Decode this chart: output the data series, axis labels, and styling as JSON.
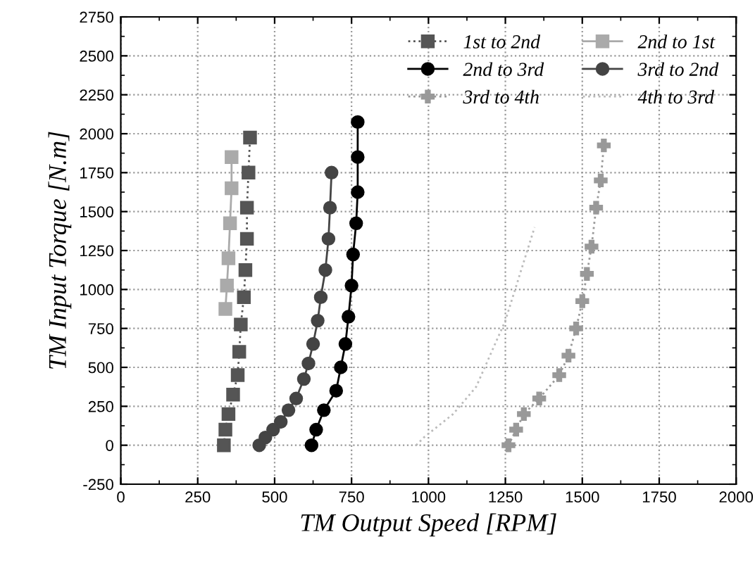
{
  "chart_data": {
    "type": "line",
    "xlabel": "TM Output Speed [RPM]",
    "ylabel": "TM Input Torque [N.m]",
    "xlim": [
      0,
      2000
    ],
    "xticks": [
      0,
      250,
      500,
      750,
      1000,
      1250,
      1500,
      1750,
      2000
    ],
    "ylim": [
      -250,
      2750
    ],
    "yticks": [
      -250,
      0,
      250,
      500,
      750,
      1000,
      1250,
      1500,
      1750,
      2000,
      2250,
      2500,
      2750
    ],
    "grid": true,
    "legend": "top right",
    "series": [
      {
        "name": "1st to 2nd",
        "color": "#555555",
        "marker": "square",
        "line_style": "dotted",
        "x": [
          335,
          340,
          350,
          365,
          380,
          385,
          390,
          400,
          405,
          410,
          410,
          415,
          420
        ],
        "values": [
          0,
          100,
          200,
          325,
          450,
          600,
          775,
          950,
          1125,
          1325,
          1525,
          1750,
          1975
        ]
      },
      {
        "name": "2nd to 1st",
        "color": "#aaaaaa",
        "marker": "square",
        "line_style": "solid",
        "x": [
          340,
          345,
          350,
          355,
          360,
          360
        ],
        "values": [
          875,
          1025,
          1200,
          1425,
          1650,
          1850
        ]
      },
      {
        "name": "2nd to 3rd",
        "color": "#000000",
        "marker": "circle",
        "line_style": "solid",
        "x": [
          620,
          635,
          660,
          700,
          715,
          730,
          740,
          750,
          755,
          765,
          770,
          770,
          770
        ],
        "values": [
          0,
          100,
          225,
          350,
          500,
          650,
          825,
          1025,
          1225,
          1425,
          1625,
          1850,
          2075
        ]
      },
      {
        "name": "3rd to 2nd",
        "color": "#444444",
        "marker": "circle",
        "line_style": "solid",
        "x": [
          450,
          470,
          495,
          520,
          545,
          570,
          595,
          610,
          625,
          640,
          650,
          665,
          675,
          680,
          685
        ],
        "values": [
          0,
          50,
          100,
          150,
          225,
          300,
          425,
          525,
          650,
          800,
          950,
          1125,
          1325,
          1525,
          1750
        ]
      },
      {
        "name": "3rd to 4th",
        "color": "#999999",
        "marker": "cross",
        "line_style": "dotted",
        "x": [
          1260,
          1285,
          1310,
          1360,
          1425,
          1455,
          1480,
          1500,
          1515,
          1530,
          1545,
          1560,
          1570
        ],
        "values": [
          0,
          100,
          200,
          300,
          450,
          575,
          750,
          925,
          1100,
          1275,
          1525,
          1700,
          1925
        ]
      },
      {
        "name": "4th to 3rd",
        "color": "#bbbbbb",
        "marker": "none",
        "line_style": "dotted",
        "x": [
          960,
          985,
          1080,
          1155,
          1250,
          1345
        ],
        "values": [
          0,
          50,
          200,
          375,
          800,
          1400
        ]
      }
    ]
  }
}
